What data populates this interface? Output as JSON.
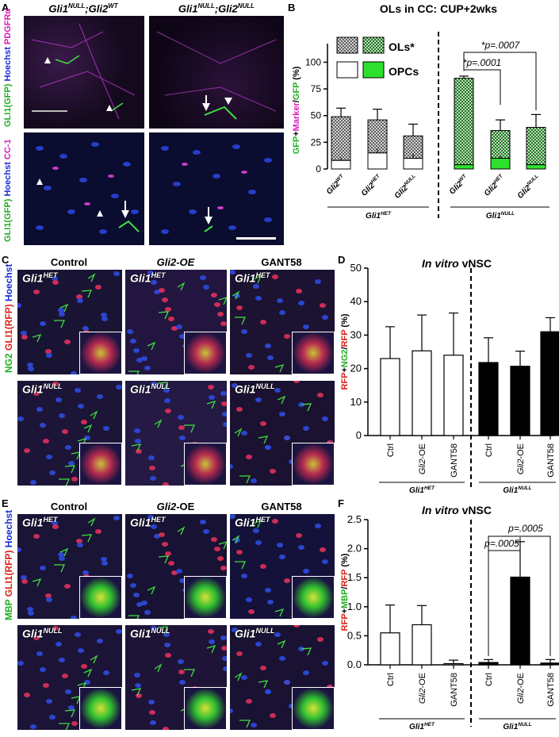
{
  "panels": {
    "A": {
      "label": "A",
      "col1": "Gli1NULL;Gli2WT",
      "col2": "Gli1NULL;Gli2NULL",
      "row1_ylabel": [
        "GLI1(GFP)",
        "Hoechst",
        "PDGFRα"
      ],
      "row2_ylabel": [
        "GLI1(GFP)",
        "Hoechst",
        "CC-1"
      ]
    },
    "B": {
      "label": "B",
      "title": "OLs in CC: CUP+2wks",
      "ylabel": "GFP+Marker/GFP (%)",
      "legend": {
        "ols": "OLs*",
        "opcs": "OPCs"
      },
      "stats": [
        "*p=.0007",
        "*p=.0001"
      ],
      "groups": [
        "Gli1HET",
        "Gli1NULL"
      ]
    },
    "C": {
      "label": "C",
      "cols": [
        "Control",
        "Gli2-OE",
        "GANT58"
      ],
      "rowgenotypes": [
        "Gli1HET",
        "Gli1NULL"
      ],
      "ylabel": [
        "NG2",
        "GLI1(RFP)",
        "Hoechst"
      ]
    },
    "D": {
      "label": "D",
      "title": "In vitro vNSC",
      "ylabel": "RFP+NG2/RFP (%)",
      "groups": [
        "Gli1HET",
        "Gli1NULL"
      ]
    },
    "E": {
      "label": "E",
      "cols": [
        "Control",
        "Gli2-OE",
        "GANT58"
      ],
      "rowgenotypes": [
        "Gli1HET",
        "Gli1NULL"
      ],
      "ylabel": [
        "MBP",
        "GLI1(RFP)",
        "Hoechst"
      ]
    },
    "F": {
      "label": "F",
      "title": "In vitro vNSC",
      "ylabel": "RFP+MBP/RFP (%)",
      "stats": [
        "p=.0005",
        "p=.0005"
      ],
      "groups": [
        "Gli1HET",
        "Gli1NULL"
      ]
    }
  },
  "chart_data": [
    {
      "id": "B",
      "type": "bar",
      "title": "OLs in CC: CUP+2wks",
      "ylabel": "GFP+Marker/GFP (%)",
      "ylim": [
        0,
        110
      ],
      "yticks": [
        0,
        25,
        50,
        75,
        100
      ],
      "categories": [
        "Gli2WT",
        "Gli2HET",
        "Gli2NULL",
        "Gli2WT",
        "Gli2HET",
        "Gli2NULL"
      ],
      "series": [
        {
          "name": "OPCs",
          "values": [
            8,
            15,
            10,
            4,
            10,
            4
          ]
        },
        {
          "name": "OLs*",
          "values": [
            41,
            31,
            21,
            81,
            26,
            35
          ]
        }
      ],
      "errors": [
        8,
        10,
        11,
        2,
        10,
        12
      ],
      "opc_errors": [
        3,
        4,
        4,
        1,
        2,
        2
      ]
    },
    {
      "id": "D",
      "type": "bar",
      "title": "In vitro vNSC",
      "ylabel": "RFP+NG2/RFP (%)",
      "ylim": [
        0,
        50
      ],
      "yticks": [
        0,
        10,
        20,
        30,
        40,
        50
      ],
      "categories": [
        "Ctrl",
        "Gli2-OE",
        "GANT58",
        "Ctrl",
        "Gli2-OE",
        "GANT58"
      ],
      "values": [
        23,
        25.3,
        24,
        21.8,
        20.7,
        31
      ],
      "errors": [
        9.5,
        10.7,
        12.6,
        7.4,
        4.5,
        4.2
      ]
    },
    {
      "id": "F",
      "type": "bar",
      "title": "In vitro vNSC",
      "ylabel": "RFP+MBP/RFP (%)",
      "ylim": [
        0,
        2.5
      ],
      "yticks": [
        0.0,
        0.5,
        1.0,
        1.5,
        2.0,
        2.5
      ],
      "categories": [
        "Ctrl",
        "Gli2-OE",
        "GANT58",
        "Ctrl",
        "Gli2-OE",
        "GANT58"
      ],
      "values": [
        0.55,
        0.69,
        0.02,
        0.04,
        1.51,
        0.03
      ],
      "errors": [
        0.48,
        0.33,
        0.06,
        0.05,
        0.61,
        0.06
      ]
    }
  ],
  "colors": {
    "green": "#2ecc2e",
    "darkgreen": "#1f9a1f",
    "black": "#000000",
    "white": "#ffffff"
  }
}
